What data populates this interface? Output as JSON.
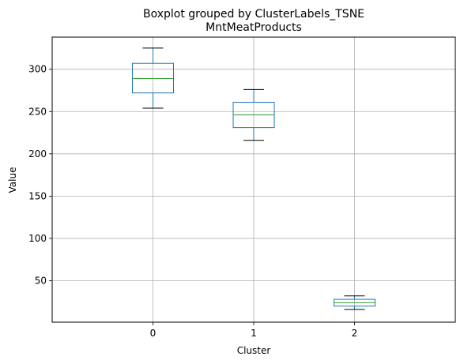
{
  "chart_data": {
    "type": "boxplot",
    "suptitle": "Boxplot grouped by ClusterLabels_TSNE",
    "title": "MntMeatProducts",
    "xlabel": "Cluster",
    "ylabel": "Value",
    "categories": [
      "0",
      "1",
      "2"
    ],
    "boxes": [
      {
        "category": "0",
        "whisker_low": 254,
        "q1": 272,
        "median": 289,
        "q3": 307,
        "whisker_high": 325
      },
      {
        "category": "1",
        "whisker_low": 216,
        "q1": 231,
        "median": 246,
        "q3": 261,
        "whisker_high": 276
      },
      {
        "category": "2",
        "whisker_low": 16,
        "q1": 20,
        "median": 24,
        "q3": 28,
        "whisker_high": 32
      }
    ],
    "ylim": [
      1,
      338
    ],
    "yticks": [
      50,
      100,
      150,
      200,
      250,
      300
    ],
    "grid": true,
    "colors": {
      "box": "#1f77b4",
      "median": "#2ca02c",
      "whisker": "#000000",
      "grid": "#b0b0b0"
    }
  }
}
